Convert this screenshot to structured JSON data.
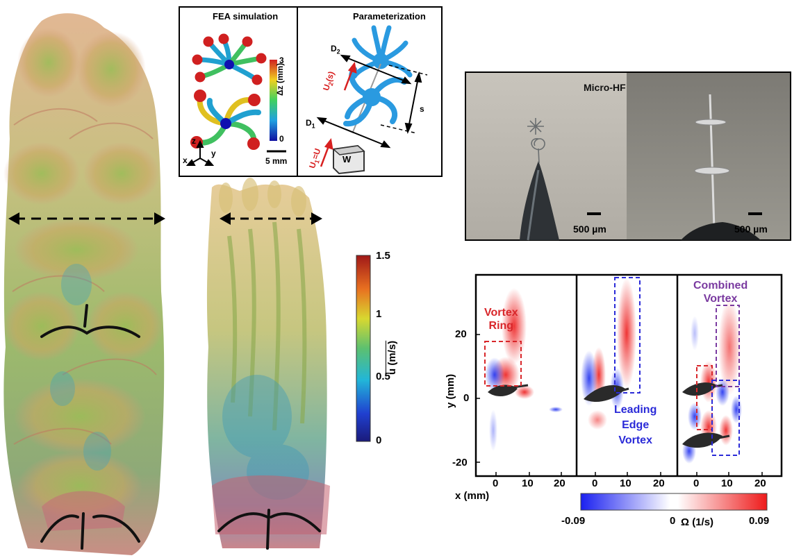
{
  "inset": {
    "fea_title": "FEA simulation",
    "param_title": "Parameterization",
    "colorbar_max": "3",
    "colorbar_min": "0",
    "colorbar_label": "Δz (mm)",
    "scale": "5 mm",
    "axes": {
      "z": "z",
      "x": "x",
      "y": "y"
    },
    "d2": "D",
    "d2_sub": "2",
    "d1": "D",
    "d1_sub": "1",
    "u2": "U",
    "u2_sub": "2",
    "u2_suffix": "(s)",
    "u1": "U",
    "u1_sub": "1",
    "u1_suffix": "=U",
    "s": "s",
    "w": "W"
  },
  "photo": {
    "title": "Micro-HF",
    "scale_left": "500 µm",
    "scale_right": "500 µm"
  },
  "velocity_colorbar": {
    "ticks": [
      "1.5",
      "1",
      "0.5",
      "0"
    ],
    "label": "u (m/s)"
  },
  "vorticity": {
    "annotations": {
      "vortex_ring_1": "Vortex",
      "vortex_ring_2": "Ring",
      "leading_1": "Leading",
      "leading_2": "Edge",
      "leading_3": "Vortex",
      "combined_1": "Combined",
      "combined_2": "Vortex"
    },
    "ylabel": "y (mm)",
    "xlabel": "x (mm)",
    "yticks": [
      "20",
      "0",
      "-20"
    ],
    "xticks_1": [
      "0",
      "10",
      "20"
    ],
    "xticks_2": [
      "0",
      "10",
      "20"
    ],
    "xticks_3": [
      "0",
      "10",
      "20"
    ],
    "colorbar_min": "-0.09",
    "colorbar_mid": "0",
    "colorbar_max": "0.09",
    "colorbar_label": "Ω (1/s)"
  },
  "colors": {
    "red_annotation": "#d8262a",
    "blue_annotation": "#2a2ad8",
    "purple_annotation": "#7a3aa0"
  }
}
